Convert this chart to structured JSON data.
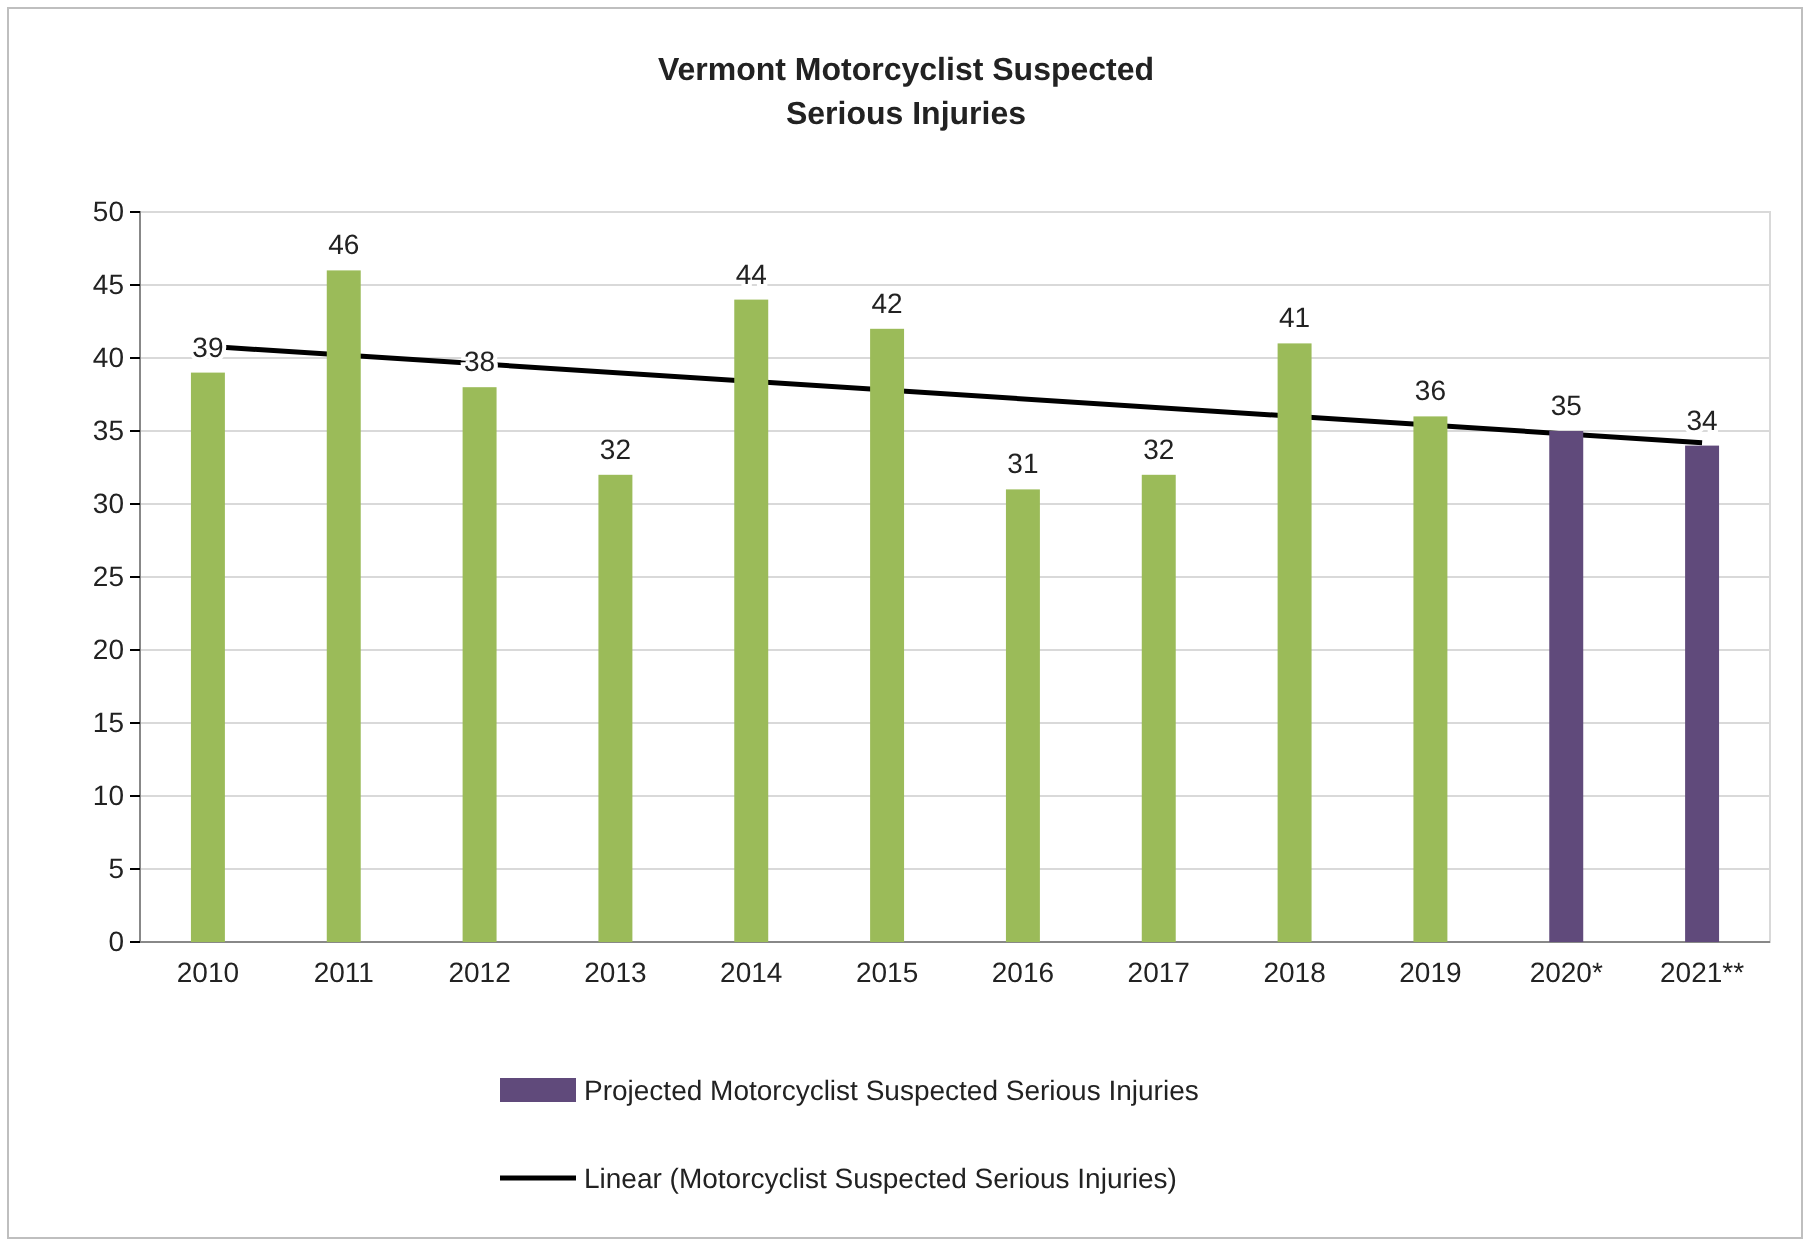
{
  "chart_data": {
    "type": "bar",
    "title": "Vermont Motorcyclist Suspected\nSerious Injuries",
    "categories": [
      "2010",
      "2011",
      "2012",
      "2013",
      "2014",
      "2015",
      "2016",
      "2017",
      "2018",
      "2019",
      "2020*",
      "2021**"
    ],
    "series": [
      {
        "color": "#9bbb59",
        "values": [
          39,
          46,
          38,
          32,
          44,
          42,
          31,
          32,
          41,
          36,
          null,
          null
        ],
        "value_labels": [
          "39",
          "46",
          "38",
          "32",
          "44",
          "42",
          "31",
          "32",
          "41",
          "36",
          null,
          null
        ]
      },
      {
        "name": "Projected Motorcyclist Suspected Serious Injuries",
        "color": "#604a7b",
        "values": [
          null,
          null,
          null,
          null,
          null,
          null,
          null,
          null,
          null,
          null,
          35,
          34
        ],
        "value_labels": [
          null,
          null,
          null,
          null,
          null,
          null,
          null,
          null,
          null,
          null,
          "35",
          "34"
        ]
      },
      {
        "name": "Linear (Motorcyclist Suspected Serious Injuries)",
        "type": "line",
        "color": "#000000",
        "values": [
          40.8,
          null,
          null,
          null,
          null,
          null,
          null,
          null,
          null,
          null,
          null,
          34.2
        ]
      }
    ],
    "ylim": [
      0,
      50
    ],
    "yticks": [
      0,
      5,
      10,
      15,
      20,
      25,
      30,
      35,
      40,
      45,
      50
    ],
    "grid": "y",
    "legend": "bottom",
    "marker": "none",
    "line_style": "solid"
  }
}
